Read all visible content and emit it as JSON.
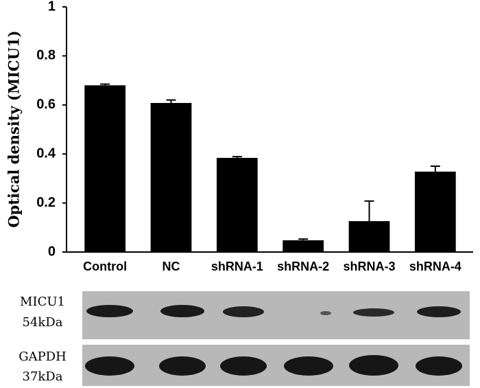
{
  "chart_data": {
    "type": "bar",
    "ylabel": "Optical density (MICU1)",
    "categories": [
      "Control",
      "NC",
      "shRNA-1",
      "shRNA-2",
      "shRNA-3",
      "shRNA-4"
    ],
    "values": [
      0.68,
      0.608,
      0.384,
      0.048,
      0.126,
      0.328
    ],
    "errors": [
      0.005,
      0.012,
      0.005,
      0.005,
      0.082,
      0.022
    ],
    "color": "#000000",
    "ylim": [
      0,
      1
    ],
    "yticks": [
      0,
      0.2,
      0.4,
      0.6,
      0.8,
      1
    ],
    "grid": false
  },
  "blot": {
    "rows": [
      {
        "name": "MICU1",
        "size": "54kDa"
      },
      {
        "name": "GAPDH",
        "size": "37kDa"
      }
    ]
  }
}
